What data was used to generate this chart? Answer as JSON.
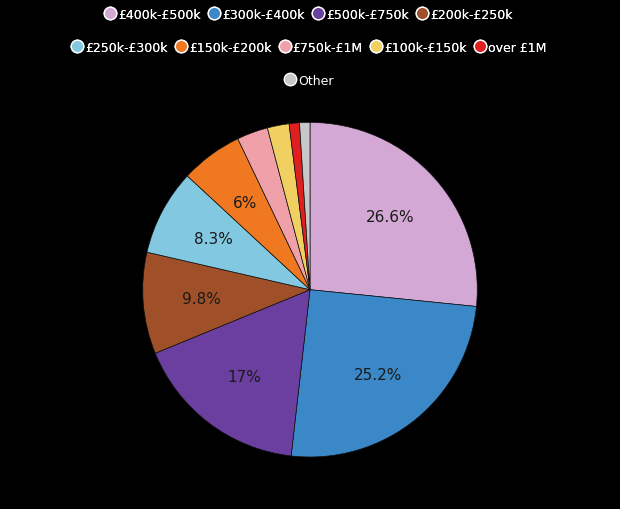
{
  "labels": [
    "£400k-£500k",
    "£300k-£400k",
    "£500k-£750k",
    "£200k-£250k",
    "£250k-£300k",
    "£150k-£200k",
    "£750k-£1M",
    "£100k-£150k",
    "over £1M",
    "Other"
  ],
  "values": [
    26.6,
    25.2,
    17.0,
    9.8,
    8.3,
    6.0,
    3.0,
    2.1,
    1.0,
    1.0
  ],
  "colors": [
    "#d4a8d4",
    "#3a88c8",
    "#6b3fa0",
    "#a05028",
    "#82c8e0",
    "#f07820",
    "#f0a0a8",
    "#f0d060",
    "#e02020",
    "#c8c8c8"
  ],
  "pct_labels": [
    "26.6%",
    "25.2%",
    "17%",
    "9.8%",
    "8.3%",
    "6%",
    "",
    "",
    "",
    ""
  ],
  "background": "#000000",
  "text_color": "#ffffff",
  "label_color": "#1a1a1a",
  "row1": [
    0,
    1,
    2,
    3
  ],
  "row2": [
    4,
    5,
    6,
    7,
    8
  ],
  "row3": [
    9
  ]
}
